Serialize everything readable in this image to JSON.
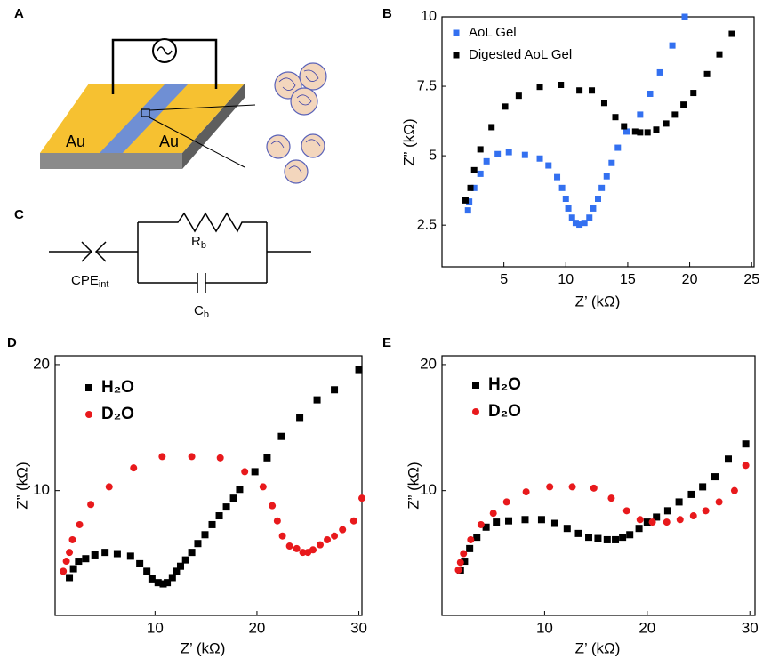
{
  "schematic": {
    "panel": "A",
    "labels": [
      "Au",
      "Au"
    ]
  },
  "circuit": {
    "panel": "C",
    "elements": [
      {
        "label": "R",
        "subscript": "b"
      },
      {
        "label": "CPE",
        "subscript": "int"
      },
      {
        "label": "C",
        "subscript": "b"
      }
    ]
  },
  "chart_data": [
    {
      "panel": "B",
      "type": "scatter",
      "xlabel": "Z’ (kΩ)",
      "ylabel": "Z” (kΩ)",
      "xlim": [
        0,
        25.2
      ],
      "ylim": [
        1,
        10
      ],
      "xticks": [
        5,
        10,
        15,
        20,
        25
      ],
      "yticks": [
        2.5,
        5,
        7.5,
        10
      ],
      "legend": "upper left",
      "series": [
        {
          "name": "AoL Gel",
          "color": "#3370f0",
          "marker": "square",
          "x": [
            2.1,
            2.2,
            2.6,
            3.1,
            3.6,
            4.5,
            5.4,
            6.7,
            7.9,
            8.6,
            9.3,
            9.7,
            10.0,
            10.2,
            10.5,
            10.8,
            11.1,
            11.5,
            11.9,
            12.2,
            12.6,
            12.9,
            13.3,
            13.7,
            14.2,
            14.9,
            16.0,
            16.8,
            17.6,
            18.6,
            19.6
          ],
          "values": [
            3.03,
            3.35,
            3.84,
            4.35,
            4.8,
            5.06,
            5.13,
            5.03,
            4.9,
            4.65,
            4.23,
            3.84,
            3.45,
            3.1,
            2.77,
            2.58,
            2.52,
            2.58,
            2.77,
            3.1,
            3.45,
            3.84,
            4.26,
            4.74,
            5.29,
            5.87,
            6.48,
            7.23,
            8.0,
            8.97,
            10.0
          ]
        },
        {
          "name": "Digested AoL Gel",
          "color": "#000000",
          "marker": "square",
          "x": [
            1.9,
            2.3,
            2.6,
            3.1,
            4.0,
            5.1,
            6.2,
            7.9,
            9.6,
            11.1,
            12.1,
            13.1,
            14.0,
            14.7,
            15.6,
            16.0,
            16.6,
            17.3,
            18.1,
            18.8,
            19.5,
            20.3,
            21.4,
            22.4,
            23.4
          ],
          "values": [
            3.39,
            3.84,
            4.48,
            5.23,
            6.03,
            6.77,
            7.16,
            7.48,
            7.55,
            7.35,
            7.35,
            6.9,
            6.39,
            6.06,
            5.87,
            5.84,
            5.84,
            5.94,
            6.16,
            6.48,
            6.84,
            7.26,
            7.94,
            8.65,
            9.39
          ]
        }
      ]
    },
    {
      "panel": "D",
      "type": "scatter",
      "xlabel": "Z’ (kΩ)",
      "ylabel": "Z” (kΩ)",
      "xlim": [
        0.2,
        30.3
      ],
      "ylim": [
        0.1,
        20.7
      ],
      "xticks": [
        10,
        20,
        30
      ],
      "yticks": [
        10,
        20
      ],
      "legend": "upper left",
      "series": [
        {
          "name": "H₂O",
          "color": "#000000",
          "marker": "square",
          "x": [
            1.6,
            2.0,
            2.5,
            3.2,
            4.1,
            5.1,
            6.3,
            7.6,
            8.5,
            9.2,
            9.7,
            10.3,
            10.8,
            11.2,
            11.7,
            12.1,
            12.5,
            13.0,
            13.6,
            14.2,
            14.9,
            15.6,
            16.3,
            17.0,
            17.7,
            18.3,
            19.8,
            21.0,
            22.4,
            24.2,
            25.9,
            27.6,
            30.0
          ],
          "values": [
            3.1,
            3.8,
            4.4,
            4.6,
            4.9,
            5.1,
            5.0,
            4.8,
            4.2,
            3.6,
            3.0,
            2.7,
            2.6,
            2.7,
            3.1,
            3.6,
            4.0,
            4.5,
            5.1,
            5.8,
            6.5,
            7.3,
            8.0,
            8.7,
            9.4,
            10.1,
            11.5,
            12.6,
            14.3,
            15.8,
            17.2,
            18.0,
            19.6
          ]
        },
        {
          "name": "D₂O",
          "color": "#e8191c",
          "marker": "circle",
          "x": [
            1.0,
            1.3,
            1.6,
            1.9,
            2.6,
            3.7,
            5.5,
            7.9,
            10.7,
            13.6,
            16.4,
            18.8,
            20.6,
            21.5,
            22.0,
            22.5,
            23.2,
            23.9,
            24.5,
            25.0,
            25.5,
            26.2,
            26.9,
            27.6,
            28.4,
            29.5,
            30.3
          ],
          "values": [
            3.6,
            4.4,
            5.1,
            6.1,
            7.3,
            8.9,
            10.3,
            11.8,
            12.7,
            12.7,
            12.6,
            11.5,
            10.3,
            8.8,
            7.6,
            6.4,
            5.6,
            5.4,
            5.1,
            5.1,
            5.3,
            5.7,
            6.1,
            6.4,
            6.9,
            7.6,
            9.4
          ]
        }
      ]
    },
    {
      "panel": "E",
      "type": "scatter",
      "xlabel": "Z’ (kΩ)",
      "ylabel": "Z” (kΩ)",
      "xlim": [
        0,
        30.5
      ],
      "ylim": [
        0.1,
        20.7
      ],
      "xticks": [
        10,
        20,
        30
      ],
      "yticks": [
        10,
        20
      ],
      "legend": "upper left",
      "series": [
        {
          "name": "H₂O",
          "color": "#000000",
          "marker": "square",
          "x": [
            1.8,
            2.2,
            2.7,
            3.4,
            4.3,
            5.3,
            6.5,
            8.1,
            9.7,
            11.0,
            12.2,
            13.3,
            14.3,
            15.2,
            16.1,
            16.9,
            17.6,
            18.3,
            19.2,
            20.0,
            20.9,
            22.0,
            23.1,
            24.3,
            25.4,
            26.6,
            27.9,
            29.6
          ],
          "values": [
            3.7,
            4.4,
            5.4,
            6.3,
            7.1,
            7.5,
            7.6,
            7.7,
            7.7,
            7.4,
            7.0,
            6.6,
            6.3,
            6.2,
            6.1,
            6.1,
            6.3,
            6.5,
            7.0,
            7.5,
            7.9,
            8.4,
            9.1,
            9.7,
            10.3,
            11.1,
            12.5,
            13.7
          ]
        },
        {
          "name": "D₂O",
          "color": "#e8191c",
          "marker": "circle",
          "x": [
            1.6,
            1.8,
            2.1,
            2.8,
            3.8,
            5.0,
            6.3,
            8.2,
            10.5,
            12.7,
            14.8,
            16.5,
            18.0,
            19.3,
            20.5,
            21.9,
            23.2,
            24.5,
            25.7,
            27.0,
            28.5,
            29.6
          ],
          "values": [
            3.7,
            4.3,
            5.0,
            6.1,
            7.3,
            8.2,
            9.1,
            9.9,
            10.3,
            10.3,
            10.2,
            9.4,
            8.4,
            7.7,
            7.5,
            7.5,
            7.7,
            8.0,
            8.4,
            9.1,
            10.0,
            12.0
          ]
        }
      ]
    }
  ]
}
